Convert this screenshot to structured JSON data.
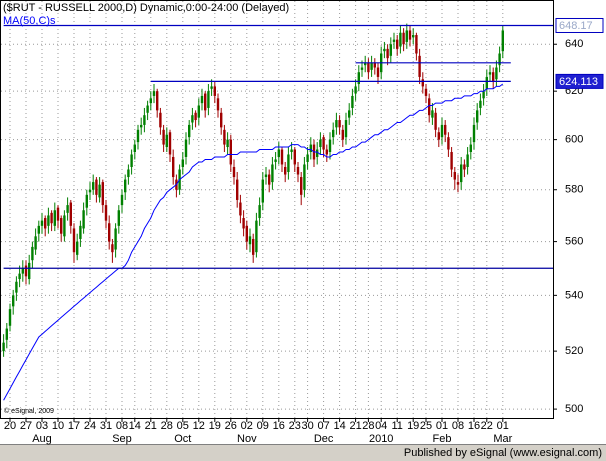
{
  "chart_data": {
    "type": "candlestick",
    "title": "($RUT - RUSSELL 2000,D) Dynamic,0:00-24:00 (Delayed)",
    "copyright": "© eSignal, 2009",
    "footer": "Published by eSignal (www.esignal.com)",
    "log_scale": true,
    "grid": true,
    "up_color": "#008000",
    "down_color": "#a00000",
    "ylim": [
      497,
      659
    ],
    "yticks": [
      500,
      520,
      540,
      560,
      580,
      600,
      620,
      640
    ],
    "categories": [
      null,
      null,
      "20",
      null,
      null,
      null,
      null,
      "27",
      null,
      null,
      null,
      null,
      "03",
      null,
      null,
      null,
      null,
      "10",
      null,
      null,
      null,
      null,
      "17",
      null,
      null,
      null,
      null,
      "24",
      null,
      null,
      null,
      null,
      "31",
      null,
      null,
      null,
      null,
      "08",
      null,
      null,
      null,
      "14",
      null,
      null,
      null,
      null,
      "21",
      null,
      null,
      null,
      null,
      "28",
      null,
      null,
      null,
      null,
      "05",
      null,
      null,
      null,
      null,
      "12",
      null,
      null,
      null,
      null,
      "19",
      null,
      null,
      null,
      null,
      "26",
      null,
      null,
      null,
      null,
      "02",
      null,
      null,
      null,
      null,
      "09",
      null,
      null,
      null,
      null,
      "16",
      null,
      null,
      null,
      null,
      "23",
      null,
      null,
      null,
      "30",
      null,
      null,
      null,
      null,
      "07",
      null,
      null,
      null,
      null,
      "14",
      null,
      null,
      null,
      null,
      "21",
      null,
      null,
      null,
      "28",
      null,
      null,
      null,
      "04",
      null,
      null,
      null,
      null,
      "11",
      null,
      null,
      null,
      null,
      "19",
      null,
      null,
      null,
      "25",
      null,
      null,
      null,
      null,
      "01",
      null,
      null,
      null,
      null,
      "08",
      null,
      null,
      null,
      null,
      "16",
      null,
      null,
      null,
      "22",
      null,
      null,
      null,
      null,
      "01"
    ],
    "months": [
      null,
      null,
      null,
      null,
      null,
      null,
      null,
      null,
      null,
      null,
      null,
      null,
      "Aug",
      null,
      null,
      null,
      null,
      null,
      null,
      null,
      null,
      null,
      null,
      null,
      null,
      null,
      null,
      null,
      null,
      null,
      null,
      null,
      null,
      null,
      null,
      null,
      null,
      "Sep",
      null,
      null,
      null,
      null,
      null,
      null,
      null,
      null,
      null,
      null,
      null,
      null,
      null,
      null,
      null,
      null,
      null,
      null,
      "Oct",
      null,
      null,
      null,
      null,
      null,
      null,
      null,
      null,
      null,
      null,
      null,
      null,
      null,
      null,
      null,
      null,
      null,
      null,
      null,
      "Nov",
      null,
      null,
      null,
      null,
      null,
      null,
      null,
      null,
      null,
      null,
      null,
      null,
      null,
      null,
      null,
      null,
      null,
      null,
      null,
      null,
      null,
      null,
      null,
      "Dec",
      null,
      null,
      null,
      null,
      null,
      null,
      null,
      null,
      null,
      null,
      null,
      null,
      null,
      null,
      null,
      null,
      null,
      "2010",
      null,
      null,
      null,
      null,
      null,
      null,
      null,
      null,
      null,
      null,
      null,
      null,
      null,
      null,
      null,
      null,
      null,
      null,
      "Feb",
      null,
      null,
      null,
      null,
      null,
      null,
      null,
      null,
      null,
      null,
      null,
      null,
      null,
      null,
      null,
      null,
      null,
      null,
      "Mar"
    ],
    "ohlc": [
      [
        520,
        526,
        518,
        523
      ],
      [
        524,
        530,
        521,
        528
      ],
      [
        529,
        537,
        527,
        535
      ],
      [
        536,
        542,
        533,
        540
      ],
      [
        541,
        547,
        538,
        545
      ],
      [
        546,
        551,
        543,
        548
      ],
      [
        548,
        553,
        545,
        550
      ],
      [
        551,
        553,
        544,
        547
      ],
      [
        546,
        555,
        544,
        552
      ],
      [
        553,
        560,
        550,
        558
      ],
      [
        557,
        565,
        555,
        562
      ],
      [
        563,
        568,
        560,
        566
      ],
      [
        566,
        571,
        563,
        568
      ],
      [
        569,
        570,
        562,
        565
      ],
      [
        566,
        573,
        563,
        570
      ],
      [
        571,
        572,
        564,
        567
      ],
      [
        566,
        575,
        564,
        572
      ],
      [
        573,
        574,
        565,
        568
      ],
      [
        569,
        570,
        560,
        563
      ],
      [
        562,
        572,
        560,
        570
      ],
      [
        571,
        577,
        568,
        574
      ],
      [
        575,
        576,
        563,
        566
      ],
      [
        565,
        567,
        552,
        556
      ],
      [
        555,
        563,
        553,
        560
      ],
      [
        561,
        568,
        558,
        566
      ],
      [
        565,
        575,
        563,
        572
      ],
      [
        573,
        580,
        570,
        578
      ],
      [
        579,
        583,
        576,
        580
      ],
      [
        580,
        586,
        578,
        583
      ],
      [
        584,
        585,
        575,
        578
      ],
      [
        577,
        585,
        575,
        582
      ],
      [
        583,
        584,
        571,
        574
      ],
      [
        574,
        576,
        565,
        568
      ],
      [
        567,
        570,
        557,
        560
      ],
      [
        559,
        561,
        552,
        556
      ],
      [
        557,
        567,
        554,
        565
      ],
      [
        566,
        574,
        563,
        572
      ],
      [
        574,
        580,
        571,
        578
      ],
      [
        579,
        586,
        576,
        584
      ],
      [
        585,
        590,
        582,
        588
      ],
      [
        589,
        596,
        586,
        594
      ],
      [
        595,
        600,
        592,
        598
      ],
      [
        599,
        606,
        596,
        604
      ],
      [
        605,
        609,
        602,
        606
      ],
      [
        606,
        613,
        603,
        610
      ],
      [
        611,
        616,
        608,
        614
      ],
      [
        615,
        620,
        612,
        617
      ],
      [
        618,
        623,
        615,
        620
      ],
      [
        620,
        621,
        609,
        612
      ],
      [
        611,
        613,
        602,
        605
      ],
      [
        604,
        606,
        595,
        598
      ],
      [
        597,
        605,
        595,
        602
      ],
      [
        603,
        604,
        591,
        594
      ],
      [
        593,
        596,
        582,
        585
      ],
      [
        584,
        586,
        577,
        580
      ],
      [
        580,
        590,
        578,
        588
      ],
      [
        589,
        595,
        586,
        592
      ],
      [
        593,
        603,
        590,
        600
      ],
      [
        601,
        608,
        598,
        606
      ],
      [
        607,
        613,
        604,
        610
      ],
      [
        611,
        612,
        605,
        608
      ],
      [
        609,
        617,
        606,
        614
      ],
      [
        615,
        621,
        612,
        618
      ],
      [
        619,
        620,
        609,
        612
      ],
      [
        613,
        623,
        610,
        620
      ],
      [
        621,
        625,
        618,
        622
      ],
      [
        622,
        624,
        615,
        618
      ],
      [
        617,
        619,
        609,
        612
      ],
      [
        611,
        613,
        602,
        605
      ],
      [
        604,
        606,
        595,
        598
      ],
      [
        597,
        603,
        594,
        600
      ],
      [
        600,
        602,
        587,
        590
      ],
      [
        589,
        592,
        582,
        585
      ],
      [
        584,
        587,
        573,
        576
      ],
      [
        575,
        578,
        567,
        570
      ],
      [
        569,
        572,
        562,
        565
      ],
      [
        566,
        568,
        557,
        560
      ],
      [
        559,
        565,
        556,
        562
      ],
      [
        561,
        563,
        552,
        555
      ],
      [
        556,
        571,
        554,
        568
      ],
      [
        569,
        577,
        566,
        574
      ],
      [
        575,
        587,
        572,
        584
      ],
      [
        585,
        589,
        582,
        586
      ],
      [
        586,
        588,
        579,
        582
      ],
      [
        583,
        593,
        580,
        590
      ],
      [
        591,
        595,
        588,
        592
      ],
      [
        593,
        599,
        590,
        596
      ],
      [
        596,
        597,
        587,
        590
      ],
      [
        589,
        591,
        583,
        586
      ],
      [
        587,
        597,
        584,
        594
      ],
      [
        595,
        599,
        592,
        596
      ],
      [
        596,
        597,
        587,
        590
      ],
      [
        589,
        591,
        583,
        586
      ],
      [
        585,
        587,
        574,
        578
      ],
      [
        580,
        593,
        577,
        590
      ],
      [
        591,
        597,
        588,
        594
      ],
      [
        595,
        601,
        592,
        598
      ],
      [
        598,
        600,
        589,
        592
      ],
      [
        593,
        599,
        590,
        596
      ],
      [
        597,
        603,
        594,
        600
      ],
      [
        601,
        602,
        593,
        596
      ],
      [
        596,
        598,
        591,
        594
      ],
      [
        595,
        603,
        592,
        600
      ],
      [
        601,
        607,
        598,
        604
      ],
      [
        605,
        611,
        602,
        608
      ],
      [
        608,
        610,
        602,
        605
      ],
      [
        604,
        606,
        597,
        600
      ],
      [
        601,
        611,
        598,
        608
      ],
      [
        609,
        615,
        606,
        612
      ],
      [
        613,
        621,
        610,
        618
      ],
      [
        619,
        625,
        616,
        622
      ],
      [
        623,
        631,
        620,
        628
      ],
      [
        629,
        633,
        626,
        630
      ],
      [
        631,
        635,
        628,
        632
      ],
      [
        632,
        634,
        625,
        628
      ],
      [
        629,
        635,
        626,
        632
      ],
      [
        632,
        634,
        627,
        630
      ],
      [
        630,
        632,
        623,
        626
      ],
      [
        628,
        639,
        625,
        636
      ],
      [
        637,
        641,
        634,
        638
      ],
      [
        638,
        640,
        631,
        634
      ],
      [
        635,
        643,
        632,
        640
      ],
      [
        641,
        645,
        638,
        642
      ],
      [
        642,
        644,
        635,
        638
      ],
      [
        639,
        648,
        636,
        645
      ],
      [
        645,
        647,
        637,
        640
      ],
      [
        641,
        649,
        638,
        646
      ],
      [
        646,
        648,
        639,
        642
      ],
      [
        643,
        647,
        640,
        644
      ],
      [
        644,
        645,
        633,
        636
      ],
      [
        635,
        638,
        623,
        626
      ],
      [
        625,
        628,
        619,
        622
      ],
      [
        621,
        623,
        615,
        618
      ],
      [
        617,
        619,
        607,
        610
      ],
      [
        609,
        615,
        606,
        612
      ],
      [
        611,
        613,
        601,
        604
      ],
      [
        603,
        605,
        597,
        600
      ],
      [
        601,
        609,
        598,
        606
      ],
      [
        606,
        608,
        599,
        602
      ],
      [
        601,
        603,
        593,
        596
      ],
      [
        595,
        597,
        585,
        588
      ],
      [
        587,
        589,
        580,
        584
      ],
      [
        583,
        586,
        579,
        582
      ],
      [
        583,
        593,
        580,
        590
      ],
      [
        590,
        592,
        585,
        588
      ],
      [
        589,
        597,
        586,
        594
      ],
      [
        595,
        601,
        592,
        598
      ],
      [
        599,
        609,
        596,
        606
      ],
      [
        607,
        615,
        604,
        612
      ],
      [
        613,
        619,
        610,
        616
      ],
      [
        617,
        623,
        614,
        620
      ],
      [
        621,
        629,
        618,
        626
      ],
      [
        627,
        631,
        624,
        628
      ],
      [
        628,
        630,
        621,
        624
      ],
      [
        625,
        633,
        622,
        630
      ],
      [
        631,
        639,
        628,
        636
      ],
      [
        637,
        648,
        634,
        646
      ]
    ],
    "series": [
      {
        "name": "MA(50,C)s",
        "color": "#0000ff",
        "values": [
          503,
          505,
          507,
          509,
          511,
          513,
          515,
          517,
          519,
          521,
          523,
          525,
          526,
          527,
          528,
          529,
          530,
          531,
          532,
          533,
          534,
          535,
          536,
          537,
          538,
          539,
          540,
          541,
          542,
          543,
          544,
          545,
          546,
          547,
          548,
          549,
          550,
          550,
          551,
          553,
          556,
          558,
          560,
          562,
          565,
          567,
          569,
          572,
          574,
          576,
          577,
          579,
          580,
          581,
          582,
          584,
          585,
          586,
          587,
          589,
          590,
          591,
          591,
          592,
          592,
          592,
          593,
          593,
          593,
          593,
          594,
          594,
          594,
          594,
          595,
          595,
          595,
          595,
          595,
          595,
          596,
          596,
          596,
          596,
          596,
          597,
          597,
          597,
          597,
          597,
          598,
          598,
          598,
          597,
          597,
          596,
          596,
          595,
          595,
          594,
          594,
          593,
          593,
          594,
          594,
          595,
          595,
          596,
          596,
          597,
          597,
          598,
          599,
          599,
          600,
          601,
          602,
          602,
          603,
          604,
          604,
          605,
          606,
          607,
          607,
          608,
          609,
          610,
          610,
          611,
          612,
          612,
          613,
          614,
          614,
          615,
          615,
          615,
          616,
          616,
          616,
          617,
          617,
          617,
          618,
          618,
          618,
          619,
          619,
          620,
          620,
          621,
          621,
          621,
          622,
          622,
          623
        ]
      }
    ],
    "levels": [
      {
        "value": 648.17,
        "start": 0,
        "color": "#0000c0",
        "boxed": true,
        "box_fill": "#ffffff",
        "box_text": "#9aa8c8"
      },
      {
        "value": 632,
        "start": 110,
        "color": "#0000c0",
        "boxed": false
      },
      {
        "value": 624.113,
        "start": 46,
        "color": "#0000c0",
        "boxed": true,
        "box_fill": "#2020d0",
        "box_text": "#ffffff"
      },
      {
        "value": 550,
        "start": 0,
        "color": "#0000a0",
        "boxed": false
      }
    ]
  }
}
